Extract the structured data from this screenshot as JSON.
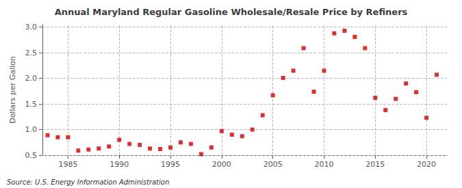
{
  "chart_data": {
    "type": "scatter",
    "title": "Annual Maryland Regular Gasoline Wholesale/Resale Price by Refiners",
    "ylabel": "Dollars per Gallon",
    "annotations": [
      "Source: U.S. Energy Information Administration"
    ],
    "x": [
      1983,
      1984,
      1985,
      1986,
      1987,
      1988,
      1989,
      1990,
      1991,
      1992,
      1993,
      1994,
      1995,
      1996,
      1997,
      1998,
      1999,
      2000,
      2001,
      2002,
      2003,
      2004,
      2005,
      2006,
      2007,
      2008,
      2009,
      2010,
      2011,
      2012,
      2013,
      2014,
      2015,
      2016,
      2017,
      2018,
      2019,
      2020,
      2021
    ],
    "values": [
      0.89,
      0.85,
      0.85,
      0.59,
      0.61,
      0.63,
      0.67,
      0.8,
      0.72,
      0.7,
      0.63,
      0.62,
      0.65,
      0.75,
      0.72,
      0.52,
      0.65,
      0.97,
      0.9,
      0.87,
      1.0,
      1.28,
      1.67,
      2.01,
      2.15,
      2.59,
      1.74,
      2.15,
      2.88,
      2.93,
      2.81,
      2.59,
      1.62,
      1.38,
      1.6,
      1.9,
      1.73,
      1.23,
      2.07
    ],
    "color": "#cc0000",
    "marker": "square",
    "xlim": [
      1982.5,
      2022
    ],
    "ylim": [
      0.5,
      3.05
    ],
    "xticks": [
      1985,
      1990,
      1995,
      2000,
      2005,
      2010,
      2015,
      2020
    ],
    "yticks": [
      0.5,
      {
        "value": 1.0,
        "label": "1.0"
      },
      1.5,
      {
        "value": 2.0,
        "label": "2.0"
      },
      2.5,
      {
        "value": 3.0,
        "label": "3.0"
      }
    ],
    "grid": true
  }
}
